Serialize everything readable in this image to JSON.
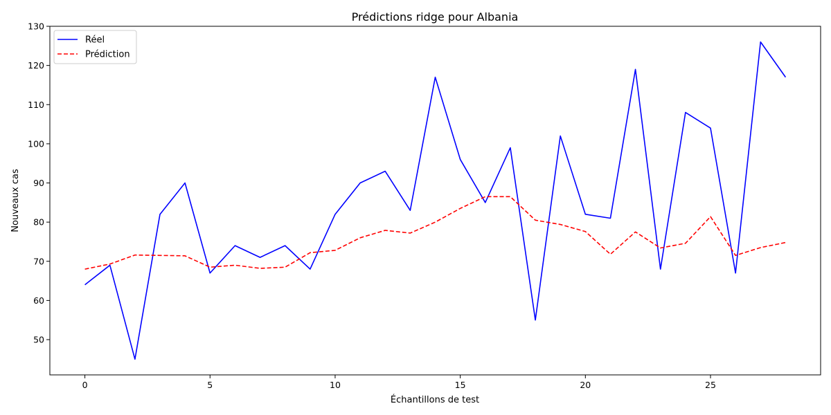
{
  "chart_data": {
    "type": "line",
    "title": "Prédictions ridge pour Albania",
    "xlabel": "Échantillons de test",
    "ylabel": "Nouveaux cas",
    "xlim": [
      -1.4,
      29.4
    ],
    "ylim": [
      41,
      130
    ],
    "xticks": [
      0,
      5,
      10,
      15,
      20,
      25
    ],
    "yticks": [
      50,
      60,
      70,
      80,
      90,
      100,
      110,
      120,
      130
    ],
    "grid": false,
    "legend_position": "top-left",
    "x": [
      0,
      1,
      2,
      3,
      4,
      5,
      6,
      7,
      8,
      9,
      10,
      11,
      12,
      13,
      14,
      15,
      16,
      17,
      18,
      19,
      20,
      21,
      22,
      23,
      24,
      25,
      26,
      27,
      28
    ],
    "series": [
      {
        "name": "Réel",
        "color": "#0000ff",
        "style": "solid",
        "values": [
          64,
          69,
          45,
          82,
          90,
          67,
          74,
          71,
          74,
          68,
          82,
          90,
          93,
          83,
          117,
          96,
          85,
          99,
          55,
          102,
          82,
          81,
          119,
          68,
          108,
          104,
          67,
          126,
          117
        ]
      },
      {
        "name": "Prédiction",
        "color": "#ff0000",
        "style": "dashed",
        "values": [
          68,
          69.3,
          71.6,
          71.5,
          71.4,
          68.5,
          69,
          68.2,
          68.5,
          72.2,
          72.8,
          76,
          77.9,
          77.2,
          80,
          83.5,
          86.5,
          86.5,
          80.5,
          79.4,
          77.6,
          71.8,
          77.5,
          73.4,
          74.6,
          81.4,
          71.5,
          73.5,
          74.8
        ]
      }
    ]
  }
}
